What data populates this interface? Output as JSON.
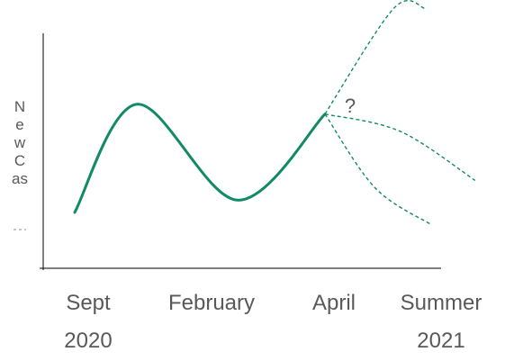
{
  "chart_data": {
    "type": "line",
    "title": "",
    "xlabel": "",
    "ylabel": "New Cases",
    "ylabel_visible": "NewCas",
    "x_ticks": [
      {
        "line1": "Sept",
        "line2": "2020"
      },
      {
        "line1": "February",
        "line2": ""
      },
      {
        "line1": "April",
        "line2": ""
      },
      {
        "line1": "Summer",
        "line2": "2021"
      }
    ],
    "annotation": "?",
    "grid": false,
    "legend": "none",
    "color": "#118a66",
    "series": [
      {
        "style": "solid",
        "points": [
          [
            0.0,
            0.22
          ],
          [
            0.5,
            0.66
          ],
          [
            1.3,
            0.27
          ],
          [
            2.0,
            0.62
          ]
        ]
      },
      {
        "style": "dashed",
        "points": [
          [
            2.0,
            0.62
          ],
          [
            2.55,
            1.05
          ],
          [
            2.8,
            1.05
          ]
        ]
      },
      {
        "style": "dashed",
        "points": [
          [
            2.0,
            0.62
          ],
          [
            2.6,
            0.55
          ],
          [
            3.2,
            0.35
          ]
        ]
      },
      {
        "style": "dashed",
        "points": [
          [
            2.0,
            0.62
          ],
          [
            2.4,
            0.32
          ],
          [
            2.85,
            0.17
          ]
        ]
      }
    ]
  }
}
